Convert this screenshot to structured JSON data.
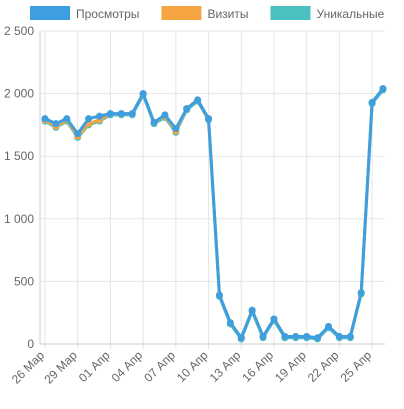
{
  "chart_data": {
    "type": "line",
    "categories": [
      "26 Мар",
      null,
      null,
      "29 Мар",
      null,
      null,
      "01 Апр",
      null,
      null,
      "04 Апр",
      null,
      null,
      "07 Апр",
      null,
      null,
      "10 Апр",
      null,
      null,
      "13 Апр",
      null,
      null,
      "16 Апр",
      null,
      null,
      "19 Апр",
      null,
      null,
      "22 Апр",
      null,
      null,
      "25 Апр",
      null
    ],
    "series": [
      {
        "name": "Просмотры",
        "color": "#3d9ee0",
        "values": [
          1800,
          1760,
          1800,
          1680,
          1800,
          1820,
          1840,
          1840,
          1840,
          2000,
          1770,
          1830,
          1720,
          1880,
          1950,
          1800,
          390,
          170,
          50,
          270,
          60,
          200,
          60,
          60,
          60,
          50,
          140,
          60,
          60,
          410,
          1930,
          2040
        ]
      },
      {
        "name": "Визиты",
        "color": "#f5a442",
        "values": [
          1790,
          1740,
          1790,
          1660,
          1760,
          1790,
          1840,
          1840,
          1840,
          2000,
          1770,
          1820,
          1700,
          1880,
          1950,
          1800,
          390,
          170,
          50,
          270,
          60,
          200,
          60,
          60,
          60,
          50,
          140,
          60,
          60,
          410,
          1930,
          2040
        ]
      },
      {
        "name": "Уникальные",
        "color": "#4bc0c0",
        "values": [
          1780,
          1730,
          1780,
          1650,
          1750,
          1780,
          1830,
          1830,
          1830,
          1990,
          1760,
          1810,
          1690,
          1870,
          1940,
          1790,
          380,
          160,
          40,
          260,
          50,
          190,
          50,
          50,
          50,
          40,
          130,
          50,
          50,
          400,
          1920,
          2030
        ]
      }
    ],
    "ylim": [
      0,
      2500
    ],
    "yticks": [
      0,
      500,
      {
        "value": 1000,
        "label": "1 000"
      },
      {
        "value": 1500,
        "label": "1 500"
      },
      {
        "value": 2000,
        "label": "2 000"
      },
      {
        "value": 2500,
        "label": "2 500"
      }
    ],
    "grid": true
  }
}
